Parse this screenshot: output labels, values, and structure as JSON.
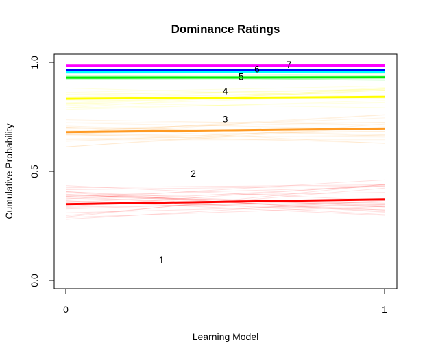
{
  "chart_data": {
    "type": "line",
    "title": "Dominance Ratings",
    "xlabel": "Learning Model",
    "ylabel": "Cumulative Probability",
    "xlim": [
      0,
      1
    ],
    "ylim": [
      0,
      1
    ],
    "x_ticks": [
      {
        "value": 0,
        "label": "0"
      },
      {
        "value": 1,
        "label": "1"
      }
    ],
    "y_ticks": [
      {
        "value": 0,
        "label": "0.0"
      },
      {
        "value": 0.5,
        "label": "0.5"
      },
      {
        "value": 1,
        "label": "1.0"
      }
    ],
    "grid": false,
    "series": [
      {
        "color": "#ff0000",
        "x": [
          0,
          1
        ],
        "values": [
          0.35,
          0.372
        ],
        "band_spread": 0.09,
        "band_count": 26
      },
      {
        "color": "#ff9a22",
        "x": [
          0,
          1
        ],
        "values": [
          0.68,
          0.697
        ],
        "band_spread": 0.07,
        "band_count": 20
      },
      {
        "color": "#ffff00",
        "x": [
          0,
          1
        ],
        "values": [
          0.833,
          0.842
        ],
        "band_spread": 0.05,
        "band_count": 16
      },
      {
        "color": "#00ee00",
        "x": [
          0,
          1
        ],
        "values": [
          0.93,
          0.932
        ],
        "band_spread": 0.02,
        "band_count": 10
      },
      {
        "color": "#00ffff",
        "x": [
          0,
          1
        ],
        "values": [
          0.955,
          0.956
        ],
        "band_spread": 0.01,
        "band_count": 6
      },
      {
        "color": "#0000ff",
        "x": [
          0,
          1
        ],
        "values": [
          0.965,
          0.966
        ],
        "band_spread": 0.006,
        "band_count": 5
      },
      {
        "color": "#ff00ff",
        "x": [
          0,
          1
        ],
        "values": [
          0.985,
          0.986
        ],
        "band_spread": 0.006,
        "band_count": 5
      }
    ],
    "annotations": [
      {
        "text": "1",
        "x": 0.3,
        "y": 0.095
      },
      {
        "text": "2",
        "x": 0.4,
        "y": 0.49
      },
      {
        "text": "3",
        "x": 0.5,
        "y": 0.74
      },
      {
        "text": "4",
        "x": 0.5,
        "y": 0.87
      },
      {
        "text": "5",
        "x": 0.55,
        "y": 0.935
      },
      {
        "text": "6",
        "x": 0.6,
        "y": 0.97
      },
      {
        "text": "7",
        "x": 0.7,
        "y": 0.99
      }
    ]
  }
}
